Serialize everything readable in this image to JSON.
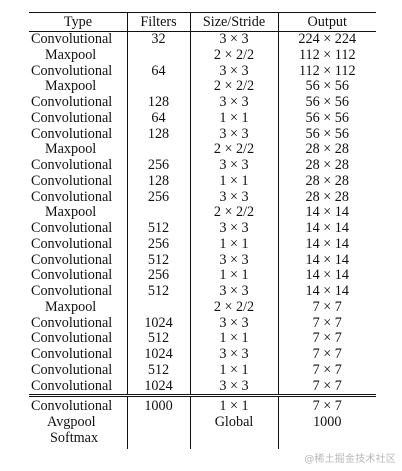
{
  "header": {
    "type": "Type",
    "filters": "Filters",
    "size": "Size/Stride",
    "output": "Output"
  },
  "rows": [
    {
      "type": "Convolutional",
      "filters": "32",
      "size": "3 × 3",
      "output": "224 × 224"
    },
    {
      "type": "Maxpool",
      "filters": "",
      "size": "2 × 2/2",
      "output": "112 × 112"
    },
    {
      "type": "Convolutional",
      "filters": "64",
      "size": "3 × 3",
      "output": "112 × 112"
    },
    {
      "type": "Maxpool",
      "filters": "",
      "size": "2 × 2/2",
      "output": "56 × 56"
    },
    {
      "type": "Convolutional",
      "filters": "128",
      "size": "3 × 3",
      "output": "56 × 56"
    },
    {
      "type": "Convolutional",
      "filters": "64",
      "size": "1 × 1",
      "output": "56 × 56"
    },
    {
      "type": "Convolutional",
      "filters": "128",
      "size": "3 × 3",
      "output": "56 × 56"
    },
    {
      "type": "Maxpool",
      "filters": "",
      "size": "2 × 2/2",
      "output": "28 × 28"
    },
    {
      "type": "Convolutional",
      "filters": "256",
      "size": "3 × 3",
      "output": "28 × 28"
    },
    {
      "type": "Convolutional",
      "filters": "128",
      "size": "1 × 1",
      "output": "28 × 28"
    },
    {
      "type": "Convolutional",
      "filters": "256",
      "size": "3 × 3",
      "output": "28 × 28"
    },
    {
      "type": "Maxpool",
      "filters": "",
      "size": "2 × 2/2",
      "output": "14 × 14"
    },
    {
      "type": "Convolutional",
      "filters": "512",
      "size": "3 × 3",
      "output": "14 × 14"
    },
    {
      "type": "Convolutional",
      "filters": "256",
      "size": "1 × 1",
      "output": "14 × 14"
    },
    {
      "type": "Convolutional",
      "filters": "512",
      "size": "3 × 3",
      "output": "14 × 14"
    },
    {
      "type": "Convolutional",
      "filters": "256",
      "size": "1 × 1",
      "output": "14 × 14"
    },
    {
      "type": "Convolutional",
      "filters": "512",
      "size": "3 × 3",
      "output": "14 × 14"
    },
    {
      "type": "Maxpool",
      "filters": "",
      "size": "2 × 2/2",
      "output": "7 × 7"
    },
    {
      "type": "Convolutional",
      "filters": "1024",
      "size": "3 × 3",
      "output": "7 × 7"
    },
    {
      "type": "Convolutional",
      "filters": "512",
      "size": "1 × 1",
      "output": "7 × 7"
    },
    {
      "type": "Convolutional",
      "filters": "1024",
      "size": "3 × 3",
      "output": "7 × 7"
    },
    {
      "type": "Convolutional",
      "filters": "512",
      "size": "1 × 1",
      "output": "7 × 7"
    },
    {
      "type": "Convolutional",
      "filters": "1024",
      "size": "3 × 3",
      "output": "7 × 7"
    }
  ],
  "tail_rows": [
    {
      "type": "Convolutional",
      "filters": "1000",
      "size": "1 × 1",
      "output": "7 × 7"
    },
    {
      "type": "Avgpool",
      "filters": "",
      "size": "Global",
      "output": "1000"
    },
    {
      "type": "Softmax",
      "filters": "",
      "size": "",
      "output": ""
    }
  ],
  "watermark": "@稀土掘金技术社区"
}
